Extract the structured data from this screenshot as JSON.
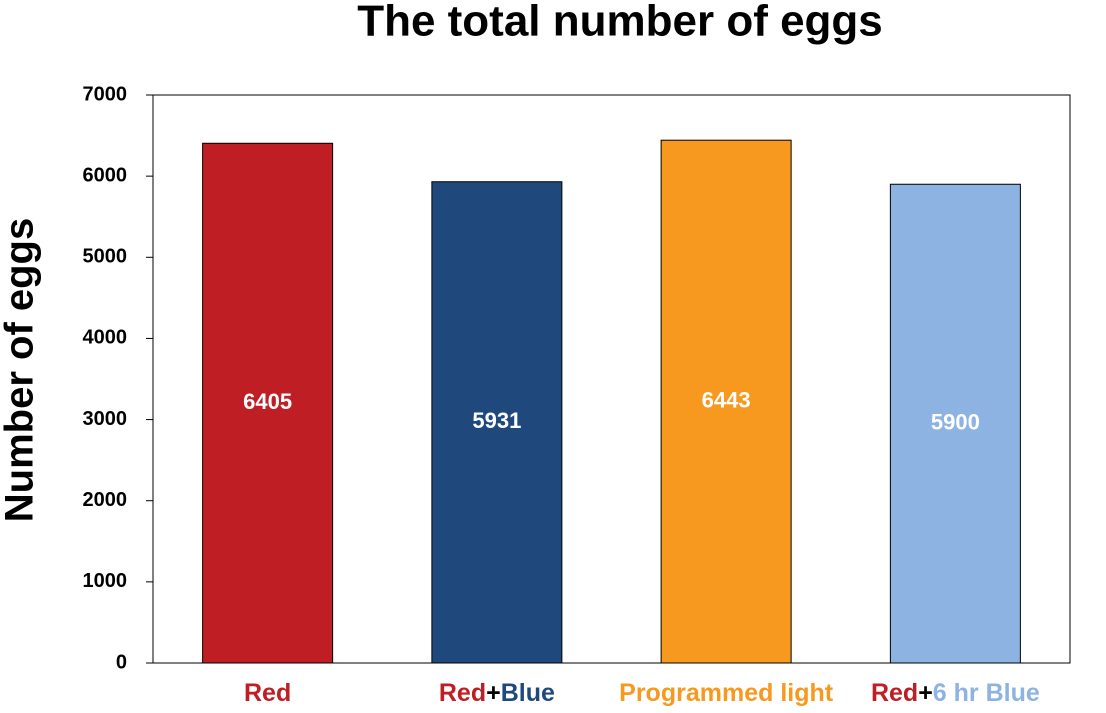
{
  "chart_data": {
    "type": "bar",
    "title": "The total number of eggs",
    "y_label": "Number of eggs",
    "categories": [
      [
        {
          "text": "Red",
          "color": "#be1e24"
        }
      ],
      [
        {
          "text": "Red",
          "color": "#be1e24"
        },
        {
          "text": "+",
          "color": "#000000"
        },
        {
          "text": "Blue",
          "color": "#1f497d"
        }
      ],
      [
        {
          "text": "Programmed light",
          "color": "#f7991f"
        }
      ],
      [
        {
          "text": "Red",
          "color": "#be1e24"
        },
        {
          "text": "+",
          "color": "#000000"
        },
        {
          "text": "6 hr Blue",
          "color": "#8db3e2"
        }
      ]
    ],
    "values": [
      6405,
      5931,
      6443,
      5900
    ],
    "colors": [
      "#be1e24",
      "#1f497d",
      "#f7991f",
      "#8db3e2"
    ],
    "ylim": [
      0,
      7000
    ],
    "yticks": [
      0,
      1000,
      2000,
      3000,
      4000,
      5000,
      6000,
      7000
    ],
    "grid": false
  }
}
